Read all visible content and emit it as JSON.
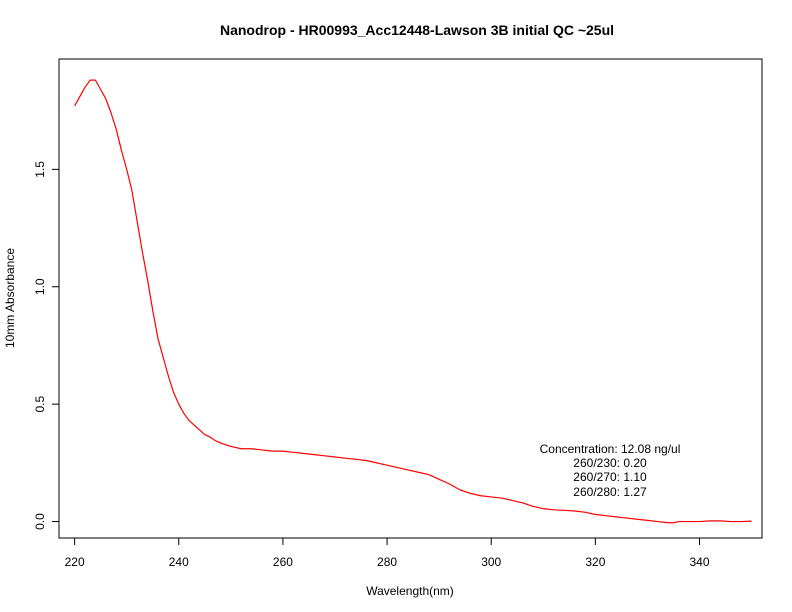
{
  "chart_data": {
    "type": "line",
    "title": "Nanodrop - HR00993_Acc12448-Lawson 3B initial QC ~25ul",
    "xlabel": "Wavelength(nm)",
    "ylabel": "10mm Absorbance",
    "xlim": [
      217,
      352
    ],
    "ylim": [
      -0.07,
      1.97
    ],
    "xticks": [
      220,
      240,
      260,
      280,
      300,
      320,
      340
    ],
    "yticks": [
      0.0,
      0.5,
      1.0,
      1.5
    ],
    "xtick_labels": [
      "220",
      "240",
      "260",
      "280",
      "300",
      "320",
      "340"
    ],
    "ytick_labels": [
      "0.0",
      "0.5",
      "1.0",
      "1.5"
    ],
    "series": [
      {
        "color": "#ff0000",
        "x": [
          220,
          221,
          222,
          223,
          224,
          225,
          226,
          227,
          228,
          229,
          230,
          231,
          232,
          233,
          234,
          235,
          236,
          237,
          238,
          239,
          240,
          241,
          242,
          243,
          244,
          245,
          246,
          247,
          248,
          250,
          252,
          254,
          256,
          258,
          260,
          262,
          264,
          266,
          268,
          270,
          272,
          274,
          276,
          278,
          280,
          282,
          284,
          286,
          288,
          290,
          292,
          294,
          296,
          298,
          300,
          302,
          304,
          306,
          308,
          310,
          312,
          314,
          316,
          318,
          320,
          322,
          324,
          326,
          328,
          330,
          332,
          334,
          335,
          336,
          338,
          340,
          342,
          344,
          346,
          348,
          350
        ],
        "y": [
          1.77,
          1.81,
          1.85,
          1.88,
          1.88,
          1.84,
          1.8,
          1.74,
          1.67,
          1.58,
          1.5,
          1.41,
          1.28,
          1.15,
          1.03,
          0.9,
          0.78,
          0.7,
          0.62,
          0.55,
          0.5,
          0.46,
          0.43,
          0.41,
          0.39,
          0.37,
          0.36,
          0.345,
          0.335,
          0.32,
          0.31,
          0.31,
          0.305,
          0.3,
          0.3,
          0.295,
          0.29,
          0.285,
          0.28,
          0.275,
          0.27,
          0.265,
          0.26,
          0.25,
          0.24,
          0.23,
          0.22,
          0.21,
          0.2,
          0.18,
          0.16,
          0.135,
          0.12,
          0.11,
          0.105,
          0.1,
          0.09,
          0.08,
          0.065,
          0.055,
          0.05,
          0.048,
          0.045,
          0.04,
          0.03,
          0.025,
          0.02,
          0.015,
          0.01,
          0.005,
          0.0,
          -0.005,
          -0.005,
          0.0,
          0.0,
          0.0,
          0.003,
          0.003,
          0.0,
          0.0,
          0.002
        ]
      }
    ],
    "annotations": [
      "Concentration: 12.08 ng/ul",
      "260/230: 0.20",
      "260/270: 1.10",
      "260/280: 1.27"
    ],
    "grid": false,
    "legend": "none"
  }
}
